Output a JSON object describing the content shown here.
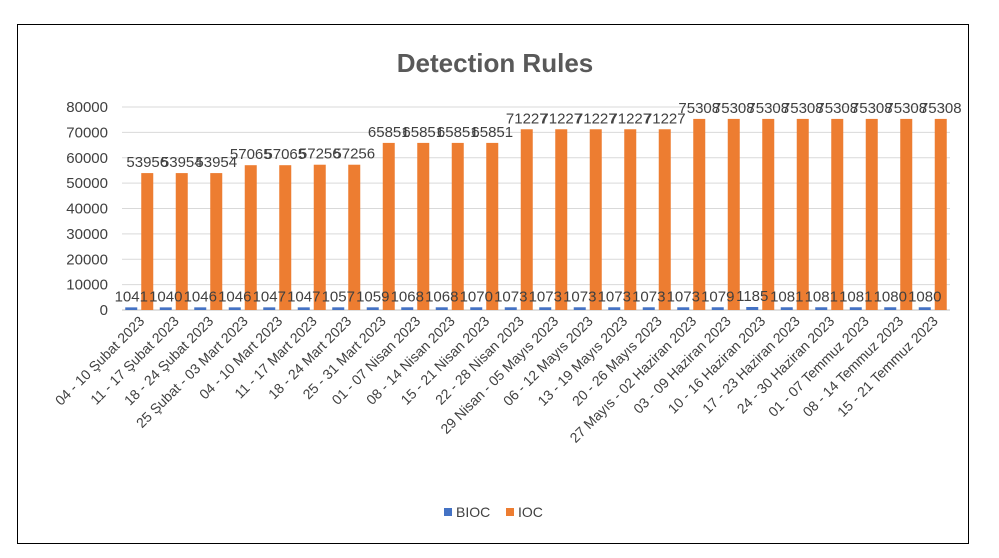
{
  "chart_data": {
    "type": "bar",
    "title": "Detection Rules",
    "xlabel": "",
    "ylabel": "",
    "ylim": [
      0,
      80000
    ],
    "yticks": [
      "0",
      "10000",
      "20000",
      "30000",
      "40000",
      "50000",
      "60000",
      "70000",
      "80000"
    ],
    "grid": true,
    "legend_position": "bottom",
    "categories": [
      "04 - 10 Şubat 2023",
      "11 - 17 Şubat 2023",
      "18 - 24 Şubat 2023",
      "25 Şubat - 03 Mart 2023",
      "04 - 10 Mart 2023",
      "11 - 17 Mart 2023",
      "18 - 24 Mart 2023",
      "25 - 31 Mart 2023",
      "01 - 07 Nisan 2023",
      "08 - 14 Nisan 2023",
      "15 - 21 Nisan 2023",
      "22 - 28 Nisan 2023",
      "29 Nisan - 05 Mayıs 2023",
      "06 - 12 Mayıs 2023",
      "13 - 19 Mayıs 2023",
      "20 - 26 Mayıs 2023",
      "27 Mayıs - 02 Haziran 2023",
      "03 - 09 Haziran 2023",
      "10 - 16 Haziran 2023",
      "17 - 23 Haziran 2023",
      "24 - 30 Haziran 2023",
      "01 - 07 Temmuz 2023",
      "08 - 14 Temmuz 2023",
      "15 - 21 Temmuz 2023"
    ],
    "series": [
      {
        "name": "BIOC",
        "color": "#4472C4",
        "values": [
          1041,
          1040,
          1046,
          1046,
          1047,
          1047,
          1057,
          1059,
          1068,
          1068,
          1070,
          1073,
          1073,
          1073,
          1073,
          1073,
          1073,
          1079,
          1185,
          1081,
          1081,
          1081,
          1080,
          1080
        ]
      },
      {
        "name": "IOC",
        "color": "#ED7D31",
        "values": [
          53956,
          53954,
          53954,
          57065,
          57065,
          57256,
          57256,
          65851,
          65851,
          65851,
          65851,
          71227,
          71227,
          71227,
          71227,
          71227,
          75308,
          75308,
          75308,
          75308,
          75308,
          75308,
          75308,
          75308
        ]
      }
    ]
  }
}
